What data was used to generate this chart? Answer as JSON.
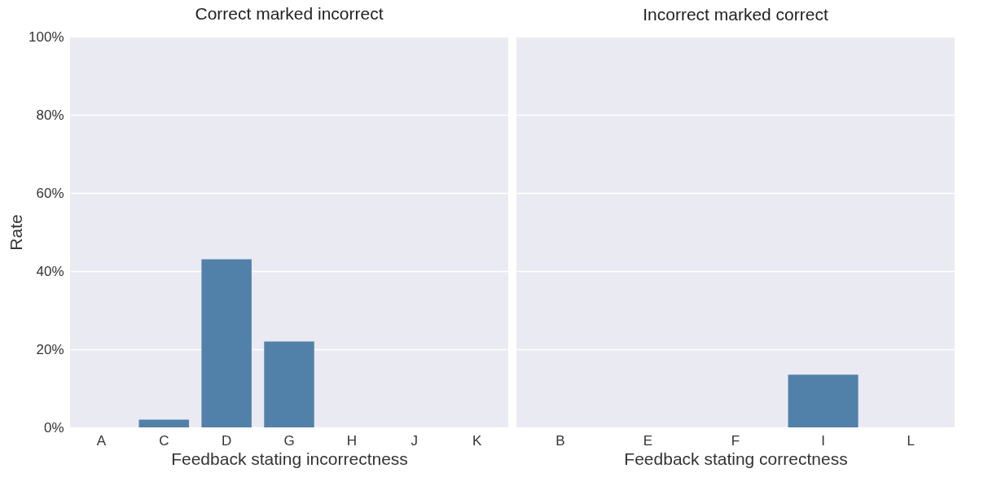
{
  "chart_data": [
    {
      "type": "bar",
      "title": "Correct marked incorrect",
      "xlabel": "Feedback stating incorrectness",
      "ylabel": "Rate",
      "categories": [
        "A",
        "C",
        "D",
        "G",
        "H",
        "J",
        "K"
      ],
      "values": [
        0,
        2,
        43,
        22,
        0,
        0,
        0
      ],
      "color": "#5181a8",
      "ylim": [
        0,
        100
      ],
      "yticks": [
        {
          "value": 0,
          "label": "0%"
        },
        {
          "value": 20,
          "label": "20%"
        },
        {
          "value": 40,
          "label": "40%"
        },
        {
          "value": 60,
          "label": "60%"
        },
        {
          "value": 80,
          "label": "80%"
        },
        {
          "value": 100,
          "label": "100%"
        }
      ],
      "grid": "y"
    },
    {
      "type": "bar",
      "title": "Incorrect marked correct",
      "xlabel": "Feedback stating correctness",
      "categories": [
        "B",
        "E",
        "F",
        "I",
        "L"
      ],
      "values": [
        0,
        0,
        0,
        13.5,
        0
      ],
      "color": "#5181a8",
      "ylim": [
        0,
        100
      ],
      "yticks": [
        {
          "value": 0,
          "label": null
        },
        {
          "value": 20,
          "label": null
        },
        {
          "value": 40,
          "label": null
        },
        {
          "value": 60,
          "label": null
        },
        {
          "value": 80,
          "label": null
        },
        {
          "value": 100,
          "label": null
        }
      ],
      "grid": "y",
      "tick_labels": "x"
    }
  ]
}
